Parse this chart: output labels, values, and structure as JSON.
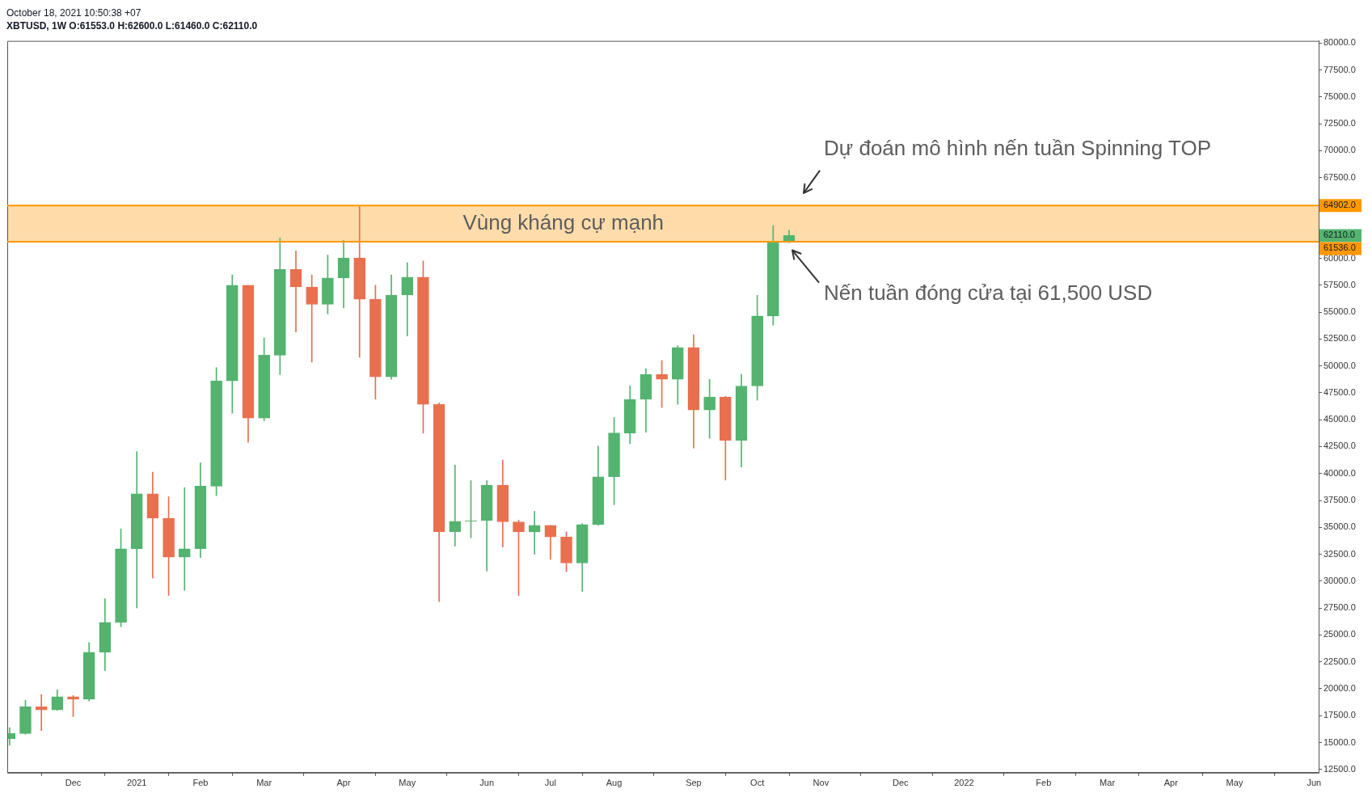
{
  "chart_data": {
    "type": "candlestick",
    "title": "XBTUSD, 1W  O:61553.0 H:62600.0 L:61460.0 C:62110.0",
    "x": [
      "2020-11-09",
      "2020-11-16",
      "2020-11-23",
      "2020-11-30",
      "2020-12-07",
      "2020-12-14",
      "2020-12-21",
      "2020-12-28",
      "2021-01-04",
      "2021-01-11",
      "2021-01-18",
      "2021-01-25",
      "2021-02-01",
      "2021-02-08",
      "2021-02-15",
      "2021-02-22",
      "2021-03-01",
      "2021-03-08",
      "2021-03-15",
      "2021-03-22",
      "2021-03-29",
      "2021-04-05",
      "2021-04-12",
      "2021-04-19",
      "2021-04-26",
      "2021-05-03",
      "2021-05-10",
      "2021-05-17",
      "2021-05-24",
      "2021-05-31",
      "2021-06-07",
      "2021-06-14",
      "2021-06-21",
      "2021-06-28",
      "2021-07-05",
      "2021-07-12",
      "2021-07-19",
      "2021-07-26",
      "2021-08-02",
      "2021-08-09",
      "2021-08-16",
      "2021-08-23",
      "2021-08-30",
      "2021-09-06",
      "2021-09-13",
      "2021-09-20",
      "2021-09-27",
      "2021-10-04",
      "2021-10-11",
      "2021-10-18"
    ],
    "ohlc": [
      [
        15370,
        16390,
        14750,
        15840
      ],
      [
        15840,
        18920,
        15780,
        18340
      ],
      [
        18340,
        19470,
        16120,
        18030
      ],
      [
        18030,
        19910,
        18000,
        19260
      ],
      [
        19260,
        19370,
        17420,
        19030
      ],
      [
        19030,
        24290,
        18850,
        23400
      ],
      [
        23400,
        28360,
        21690,
        26170
      ],
      [
        26170,
        34860,
        25760,
        33010
      ],
      [
        33010,
        42040,
        27510,
        38110
      ],
      [
        38110,
        40130,
        30280,
        35850
      ],
      [
        35850,
        37840,
        28670,
        32230
      ],
      [
        32230,
        38690,
        29150,
        33010
      ],
      [
        33010,
        40980,
        32190,
        38830
      ],
      [
        38830,
        49840,
        37940,
        48610
      ],
      [
        48610,
        58460,
        45600,
        57500
      ],
      [
        57500,
        57500,
        42900,
        45150
      ],
      [
        45150,
        52610,
        44910,
        51000
      ],
      [
        51000,
        61880,
        49190,
        58970
      ],
      [
        58970,
        60680,
        53160,
        57330
      ],
      [
        57330,
        58460,
        50350,
        55720
      ],
      [
        55720,
        60300,
        54830,
        58180
      ],
      [
        58180,
        61670,
        55380,
        60030
      ],
      [
        60030,
        64902,
        50800,
        56200
      ],
      [
        56200,
        57500,
        46900,
        48980
      ],
      [
        48980,
        58460,
        48750,
        56580
      ],
      [
        56580,
        59590,
        52780,
        58250
      ],
      [
        58250,
        59760,
        43750,
        46420
      ],
      [
        46420,
        46560,
        28090,
        34590
      ],
      [
        34590,
        40790,
        33260,
        35560
      ],
      [
        35560,
        39340,
        34030,
        35620
      ],
      [
        35620,
        39340,
        30940,
        38930
      ],
      [
        38930,
        41260,
        33180,
        35510
      ],
      [
        35510,
        35670,
        28660,
        34580
      ],
      [
        34580,
        36490,
        32500,
        35180
      ],
      [
        35180,
        35180,
        32030,
        34110
      ],
      [
        34110,
        34580,
        30880,
        31680
      ],
      [
        31680,
        35340,
        29050,
        35260
      ],
      [
        35260,
        42540,
        35180,
        39700
      ],
      [
        39700,
        45220,
        37100,
        43770
      ],
      [
        43770,
        48150,
        42760,
        46890
      ],
      [
        46890,
        49740,
        43830,
        49190
      ],
      [
        49190,
        50510,
        46130,
        48750
      ],
      [
        48750,
        51880,
        46430,
        51710
      ],
      [
        51710,
        52890,
        42380,
        45910
      ],
      [
        45910,
        48750,
        43280,
        47110
      ],
      [
        47110,
        47170,
        39390,
        43090
      ],
      [
        43090,
        49220,
        40600,
        48130
      ],
      [
        48130,
        56560,
        46810,
        54640
      ],
      [
        54640,
        63040,
        53790,
        61480
      ],
      [
        61553,
        62600,
        61460,
        62110
      ]
    ],
    "colors": [
      "#53b36f",
      "#53b36f",
      "#e8704f",
      "#53b36f",
      "#e8704f",
      "#53b36f",
      "#53b36f",
      "#53b36f",
      "#53b36f",
      "#e8704f",
      "#e8704f",
      "#53b36f",
      "#53b36f",
      "#53b36f",
      "#53b36f",
      "#e8704f",
      "#53b36f",
      "#53b36f",
      "#e8704f",
      "#e8704f",
      "#53b36f",
      "#53b36f",
      "#e8704f",
      "#e8704f",
      "#53b36f",
      "#53b36f",
      "#e8704f",
      "#e8704f",
      "#53b36f",
      "#53b36f",
      "#53b36f",
      "#e8704f",
      "#e8704f",
      "#53b36f",
      "#e8704f",
      "#e8704f",
      "#53b36f",
      "#53b36f",
      "#53b36f",
      "#53b36f",
      "#53b36f",
      "#e8704f",
      "#53b36f",
      "#e8704f",
      "#53b36f",
      "#e8704f",
      "#53b36f",
      "#53b36f",
      "#53b36f",
      "#53b36f"
    ],
    "xlim": [
      "2020-11-08",
      "2022-06-08"
    ],
    "xticks": [
      {
        "value": "2020-12-07",
        "label": "Dec"
      },
      {
        "value": "2021-01-04",
        "label": "2021"
      },
      {
        "value": "2021-02-01",
        "label": "Feb"
      },
      {
        "value": "2021-03-01",
        "label": "Mar"
      },
      {
        "value": "2021-04-05",
        "label": "Apr"
      },
      {
        "value": "2021-05-03",
        "label": "May"
      },
      {
        "value": "2021-06-07",
        "label": "Jun"
      },
      {
        "value": "2021-07-05",
        "label": "Jul"
      },
      {
        "value": "2021-08-02",
        "label": "Aug"
      },
      {
        "value": "2021-09-06",
        "label": "Sep"
      },
      {
        "value": "2021-10-04",
        "label": "Oct"
      },
      {
        "value": "2021-11-01",
        "label": "Nov"
      },
      {
        "value": "2021-12-06",
        "label": "Dec"
      },
      {
        "value": "2022-01-03",
        "label": "2022"
      },
      {
        "value": "2022-02-07",
        "label": "Feb"
      },
      {
        "value": "2022-03-07",
        "label": "Mar"
      },
      {
        "value": "2022-04-04",
        "label": "Apr"
      },
      {
        "value": "2022-05-02",
        "label": "May"
      },
      {
        "value": "2022-06-06",
        "label": "Jun"
      }
    ],
    "ylim": [
      12200,
      80200
    ],
    "yticks": [
      {
        "value": 12500,
        "label": "12500.0"
      },
      {
        "value": 15000,
        "label": "15000.0"
      },
      {
        "value": 17500,
        "label": "17500.0"
      },
      {
        "value": 20000,
        "label": "20000.0"
      },
      {
        "value": 22500,
        "label": "22500.0"
      },
      {
        "value": 25000,
        "label": "25000.0"
      },
      {
        "value": 27500,
        "label": "27500.0"
      },
      {
        "value": 30000,
        "label": "30000.0"
      },
      {
        "value": 32500,
        "label": "32500.0"
      },
      {
        "value": 35000,
        "label": "35000.0"
      },
      {
        "value": 37500,
        "label": "37500.0"
      },
      {
        "value": 40000,
        "label": "40000.0"
      },
      {
        "value": 42500,
        "label": "42500.0"
      },
      {
        "value": 45000,
        "label": "45000.0"
      },
      {
        "value": 47500,
        "label": "47500.0"
      },
      {
        "value": 50000,
        "label": "50000.0"
      },
      {
        "value": 52500,
        "label": "52500.0"
      },
      {
        "value": 55000,
        "label": "55000.0"
      },
      {
        "value": 57500,
        "label": "57500.0"
      },
      {
        "value": 60000,
        "label": "60000.0"
      },
      {
        "value": 62500,
        "label": null
      },
      {
        "value": 65000,
        "label": null
      },
      {
        "value": 67500,
        "label": "67500.0"
      },
      {
        "value": 70000,
        "label": "70000.0"
      },
      {
        "value": 72500,
        "label": "72500.0"
      },
      {
        "value": 75000,
        "label": "75000.0"
      },
      {
        "value": 77500,
        "label": "77500.0"
      },
      {
        "value": 80000,
        "label": "80000.0"
      }
    ],
    "ref_lines": [
      {
        "axis": "y",
        "value": 64902,
        "label": "64902.0",
        "color": "#ff9800"
      },
      {
        "axis": "y",
        "value": 61536,
        "label": "61536.0",
        "color": "#ff9800"
      }
    ],
    "bands": [
      {
        "axis": "y",
        "from": 61536,
        "to": 64902,
        "label": "Vùng kháng cự mạnh",
        "color": "#ffdcaa"
      }
    ],
    "annotations": [
      "October 18, 2021 10:50:38 +07",
      "Dự đoán mô hình nến tuần Spinning TOP",
      {
        "text": "Nến tuần đóng cửa tại 61,500 USD",
        "x": "2021-10-18",
        "y": 61500
      },
      "62110.0"
    ],
    "grid": false,
    "legend": false
  }
}
